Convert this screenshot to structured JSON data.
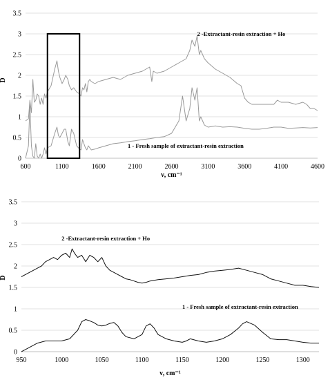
{
  "chart_data": [
    {
      "type": "line",
      "xlabel": "ν, cm⁻¹",
      "ylabel": "D",
      "xlim": [
        600,
        4600
      ],
      "ylim": [
        0,
        3.5
      ],
      "xticks": [
        600,
        1100,
        1600,
        2100,
        2600,
        3100,
        3600,
        4100,
        4600
      ],
      "yticks": [
        0,
        0.5,
        1,
        1.5,
        2,
        2.5,
        3,
        3.5
      ],
      "grid": true,
      "highlight_box": {
        "x": [
          900,
          1340
        ],
        "y": [
          0,
          3.0
        ]
      },
      "annotations": [
        {
          "text": "2 -Extractant-resin extraction + Ho",
          "x": 2950,
          "y": 2.95
        },
        {
          "text": "1 - Fresh sample of extractant-resin extraction",
          "x": 2000,
          "y": 0.25
        }
      ],
      "series": [
        {
          "color": "#9a9a9a",
          "x": [
            600,
            640,
            660,
            680,
            700,
            720,
            740,
            760,
            780,
            800,
            820,
            840,
            860,
            880,
            900,
            950,
            1000,
            1030,
            1050,
            1070,
            1100,
            1130,
            1150,
            1180,
            1200,
            1230,
            1260,
            1300,
            1340,
            1360,
            1380,
            1400,
            1420,
            1440,
            1460,
            1480,
            1500,
            1550,
            1600,
            1700,
            1800,
            1900,
            2000,
            2100,
            2200,
            2250,
            2300,
            2330,
            2350,
            2400,
            2500,
            2600,
            2700,
            2750,
            2800,
            2850,
            2880,
            2920,
            2950,
            2980,
            3000,
            3050,
            3100,
            3200,
            3300,
            3400,
            3500,
            3550,
            3600,
            3650,
            3700,
            3800,
            3900,
            4000,
            4050,
            4100,
            4200,
            4300,
            4400,
            4450,
            4500,
            4550,
            4600
          ],
          "y": [
            0.9,
            0.95,
            1.4,
            1.1,
            1.9,
            1.35,
            1.4,
            1.55,
            1.5,
            1.3,
            1.45,
            1.3,
            1.55,
            1.45,
            1.6,
            1.75,
            2.15,
            2.35,
            2.1,
            1.95,
            1.8,
            1.9,
            2.0,
            1.9,
            1.75,
            1.65,
            1.7,
            1.6,
            1.55,
            1.5,
            1.7,
            1.65,
            1.8,
            1.6,
            1.85,
            1.9,
            1.85,
            1.8,
            1.85,
            1.9,
            1.95,
            1.9,
            2.0,
            2.05,
            2.1,
            2.15,
            2.2,
            1.85,
            2.1,
            2.05,
            2.1,
            2.2,
            2.3,
            2.35,
            2.4,
            2.6,
            2.85,
            2.7,
            2.95,
            2.5,
            2.6,
            2.4,
            2.3,
            2.15,
            2.05,
            1.95,
            1.8,
            1.75,
            1.45,
            1.35,
            1.3,
            1.3,
            1.3,
            1.3,
            1.4,
            1.35,
            1.35,
            1.3,
            1.35,
            1.3,
            1.2,
            1.2,
            1.15
          ]
        },
        {
          "color": "#9a9a9a",
          "x": [
            600,
            640,
            660,
            680,
            700,
            720,
            740,
            760,
            780,
            800,
            820,
            840,
            860,
            880,
            900,
            950,
            1000,
            1030,
            1050,
            1070,
            1100,
            1130,
            1150,
            1180,
            1200,
            1230,
            1260,
            1300,
            1340,
            1360,
            1380,
            1400,
            1420,
            1440,
            1460,
            1480,
            1500,
            1550,
            1600,
            1700,
            1800,
            1900,
            2000,
            2100,
            2200,
            2300,
            2400,
            2500,
            2600,
            2700,
            2750,
            2800,
            2850,
            2880,
            2920,
            2950,
            2980,
            3000,
            3050,
            3100,
            3200,
            3300,
            3400,
            3500,
            3600,
            3700,
            3800,
            3900,
            4000,
            4100,
            4200,
            4300,
            4400,
            4500,
            4600
          ],
          "y": [
            0.0,
            0.3,
            1.3,
            0.3,
            0.05,
            0.0,
            0.35,
            0.05,
            0.0,
            0.1,
            0.0,
            0.1,
            0.25,
            0.1,
            0.25,
            0.3,
            0.6,
            0.75,
            0.55,
            0.5,
            0.6,
            0.7,
            0.7,
            0.4,
            0.3,
            0.7,
            0.6,
            0.3,
            0.22,
            0.2,
            0.45,
            0.35,
            0.25,
            0.2,
            0.3,
            0.25,
            0.2,
            0.22,
            0.25,
            0.3,
            0.35,
            0.37,
            0.4,
            0.42,
            0.45,
            0.47,
            0.5,
            0.52,
            0.6,
            0.9,
            1.5,
            0.9,
            1.2,
            1.7,
            1.4,
            1.7,
            0.9,
            1.0,
            0.8,
            0.75,
            0.78,
            0.75,
            0.76,
            0.75,
            0.72,
            0.7,
            0.7,
            0.72,
            0.75,
            0.75,
            0.72,
            0.73,
            0.74,
            0.73,
            0.74
          ]
        }
      ]
    },
    {
      "type": "line",
      "xlabel": "ν, cm⁻¹",
      "ylabel": "D",
      "xlim": [
        950,
        1320
      ],
      "ylim": [
        0,
        3.5
      ],
      "xticks": [
        950,
        1000,
        1050,
        1100,
        1150,
        1200,
        1250,
        1300
      ],
      "yticks": [
        0,
        0.5,
        1,
        1.5,
        2,
        2.5,
        3,
        3.5
      ],
      "grid": true,
      "annotations": [
        {
          "text": "2 -Extractant-resin extraction + Ho",
          "x": 1000,
          "y": 2.6
        },
        {
          "text": "1 - Fresh sample of extractant-resin extraction",
          "x": 1150,
          "y": 1.0
        }
      ],
      "series": [
        {
          "color": "#111111",
          "x": [
            950,
            955,
            960,
            965,
            970,
            975,
            980,
            985,
            990,
            995,
            1000,
            1005,
            1010,
            1013,
            1016,
            1020,
            1025,
            1030,
            1035,
            1040,
            1045,
            1050,
            1055,
            1060,
            1065,
            1070,
            1075,
            1080,
            1085,
            1090,
            1095,
            1100,
            1105,
            1110,
            1120,
            1130,
            1140,
            1150,
            1160,
            1170,
            1180,
            1190,
            1200,
            1210,
            1220,
            1230,
            1240,
            1250,
            1260,
            1270,
            1280,
            1290,
            1300,
            1310,
            1320
          ],
          "y": [
            1.75,
            1.8,
            1.85,
            1.9,
            1.95,
            2.0,
            2.1,
            2.15,
            2.2,
            2.15,
            2.25,
            2.3,
            2.2,
            2.4,
            2.3,
            2.2,
            2.25,
            2.1,
            2.25,
            2.2,
            2.1,
            2.2,
            2.0,
            1.9,
            1.85,
            1.8,
            1.75,
            1.7,
            1.68,
            1.65,
            1.62,
            1.6,
            1.62,
            1.65,
            1.68,
            1.7,
            1.72,
            1.75,
            1.78,
            1.8,
            1.85,
            1.88,
            1.9,
            1.92,
            1.95,
            1.9,
            1.85,
            1.8,
            1.7,
            1.65,
            1.6,
            1.55,
            1.55,
            1.52,
            1.5
          ]
        },
        {
          "color": "#111111",
          "x": [
            950,
            955,
            960,
            970,
            980,
            990,
            1000,
            1010,
            1020,
            1025,
            1030,
            1035,
            1040,
            1045,
            1050,
            1055,
            1060,
            1065,
            1070,
            1075,
            1080,
            1090,
            1100,
            1105,
            1110,
            1115,
            1120,
            1130,
            1140,
            1150,
            1155,
            1160,
            1170,
            1180,
            1190,
            1200,
            1210,
            1220,
            1225,
            1230,
            1240,
            1250,
            1260,
            1270,
            1280,
            1290,
            1300,
            1310,
            1320
          ],
          "y": [
            0.0,
            0.05,
            0.1,
            0.2,
            0.25,
            0.25,
            0.25,
            0.3,
            0.5,
            0.7,
            0.75,
            0.72,
            0.68,
            0.62,
            0.6,
            0.62,
            0.66,
            0.68,
            0.6,
            0.45,
            0.35,
            0.3,
            0.4,
            0.6,
            0.65,
            0.55,
            0.4,
            0.3,
            0.25,
            0.22,
            0.25,
            0.3,
            0.25,
            0.22,
            0.25,
            0.3,
            0.4,
            0.55,
            0.65,
            0.7,
            0.62,
            0.45,
            0.3,
            0.28,
            0.28,
            0.25,
            0.22,
            0.2,
            0.2
          ]
        }
      ]
    }
  ]
}
